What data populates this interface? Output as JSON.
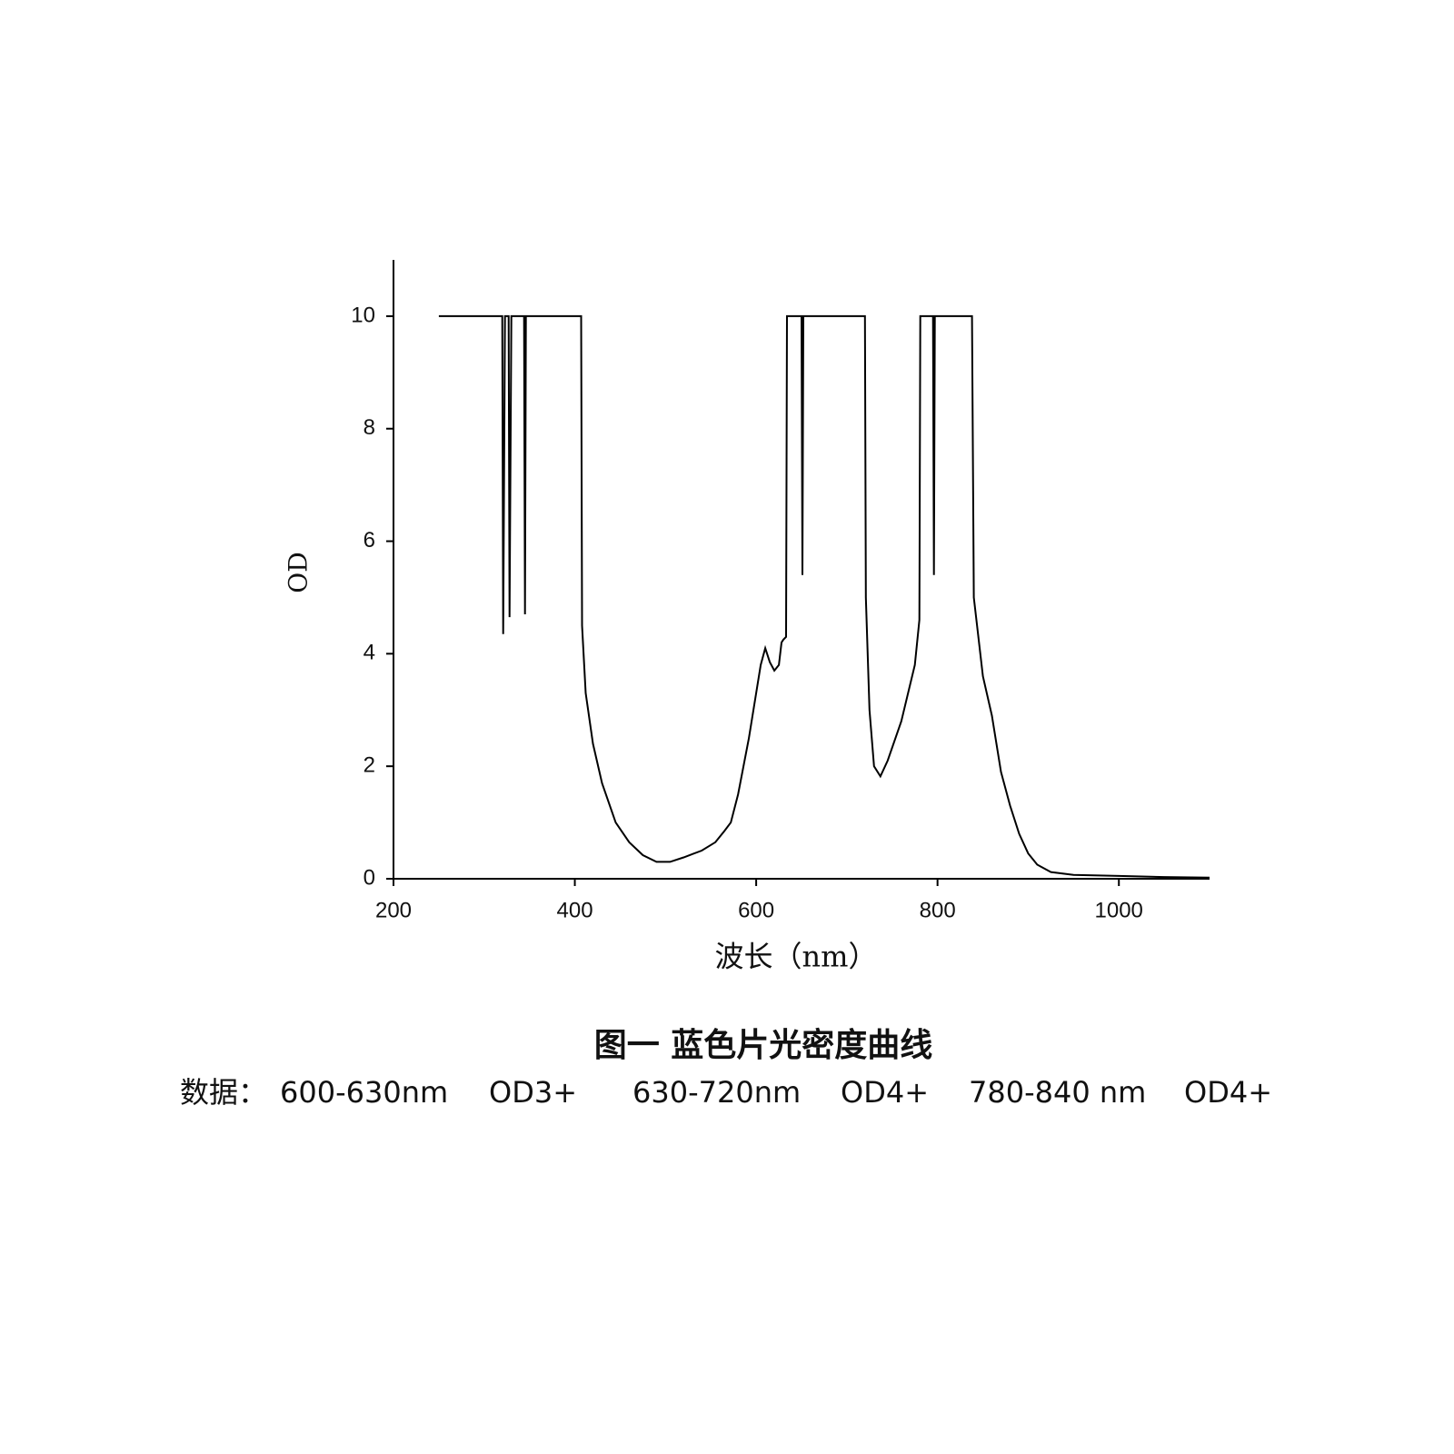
{
  "chart_data": {
    "type": "line",
    "x_label": "波长（nm）",
    "y_label": "OD",
    "xlim": [
      200,
      1100
    ],
    "xticks": [
      200,
      400,
      600,
      800,
      1000
    ],
    "ylim": [
      0,
      11
    ],
    "yticks": [
      0,
      2,
      4,
      6,
      8,
      10
    ],
    "color": "#000000",
    "x": [
      250,
      320,
      321,
      323,
      327,
      328,
      330,
      344,
      345,
      346,
      407,
      408,
      412,
      420,
      430,
      445,
      460,
      475,
      490,
      505,
      520,
      540,
      555,
      565,
      572,
      580,
      592,
      605,
      610,
      615,
      620,
      625,
      628,
      630,
      633,
      634,
      650,
      651,
      652,
      720,
      721,
      725,
      730,
      737,
      745,
      760,
      775,
      780,
      781,
      795,
      796,
      797,
      838,
      840,
      850,
      860,
      870,
      880,
      890,
      900,
      910,
      925,
      950,
      1000,
      1050,
      1100
    ],
    "values": [
      10,
      10,
      4.35,
      10,
      10,
      4.65,
      10,
      10,
      4.7,
      10,
      10,
      4.5,
      3.3,
      2.4,
      1.7,
      1.0,
      0.65,
      0.42,
      0.3,
      0.3,
      0.38,
      0.5,
      0.65,
      0.85,
      1.0,
      1.5,
      2.5,
      3.8,
      4.1,
      3.85,
      3.7,
      3.8,
      4.2,
      4.25,
      4.3,
      10,
      10,
      5.4,
      10,
      10,
      5.0,
      3.0,
      2.0,
      1.82,
      2.1,
      2.8,
      3.8,
      4.6,
      10,
      10,
      5.4,
      10,
      10,
      5.0,
      3.6,
      2.9,
      1.9,
      1.3,
      0.8,
      0.45,
      0.25,
      0.12,
      0.07,
      0.05,
      0.03,
      0.02
    ]
  },
  "caption": "图一  蓝色片光密度曲线",
  "notes": {
    "label": "数据：",
    "items": [
      "600-630nm",
      "OD3+",
      "630-720nm",
      "OD4+",
      "780-840 nm",
      "OD4+"
    ]
  }
}
